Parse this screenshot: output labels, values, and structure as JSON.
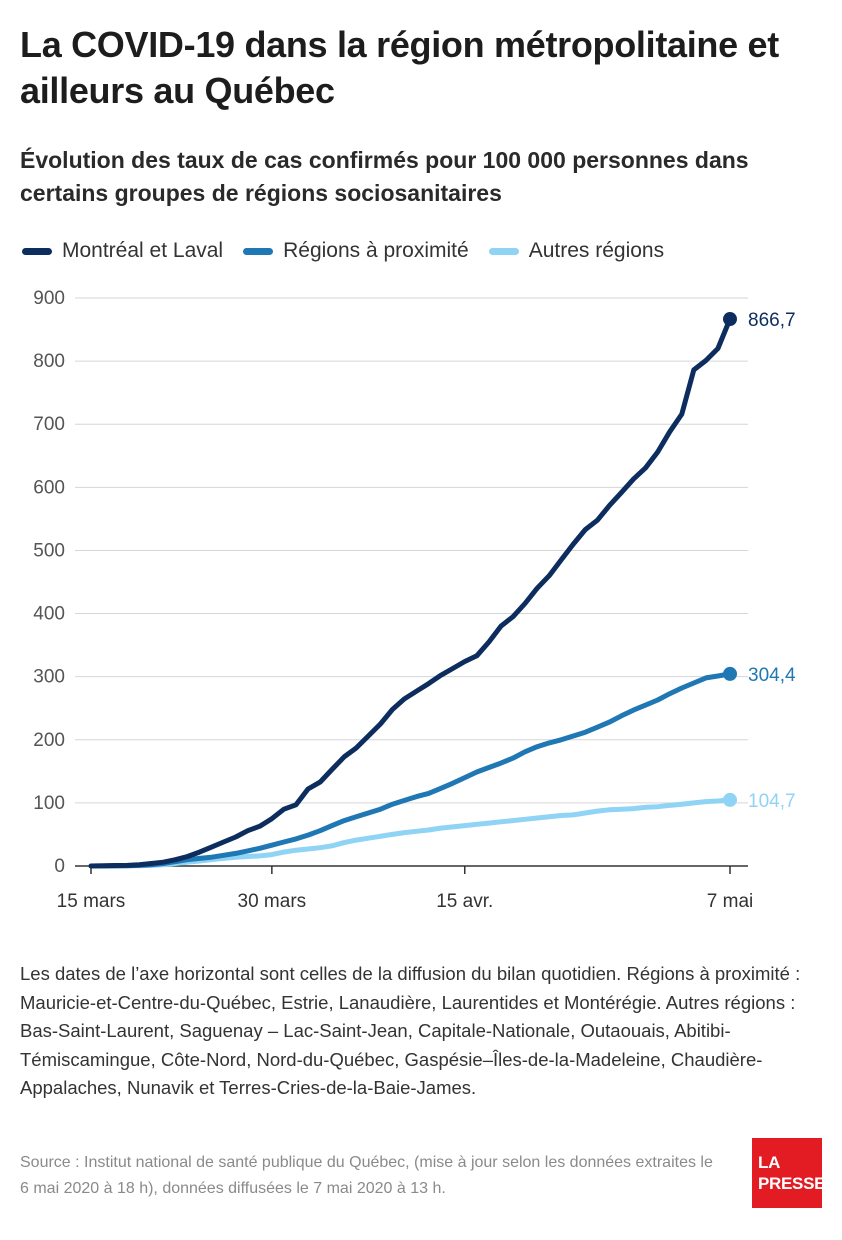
{
  "title": "La COVID-19 dans la région métropolitaine et ailleurs au Québec",
  "subtitle": "Évolution des taux de cas confirmés pour 100 000 personnes dans certains groupes de régions sociosanitaires",
  "notes": "Les dates de l’axe horizontal sont celles de la diffusion du bilan quotidien. Régions à proximité : Mauricie-et-Centre-du-Québec, Estrie, Lanaudière, Laurentides et Montérégie. Autres régions : Bas-Saint-Laurent, Saguenay – Lac-Saint-Jean, Capitale-Nationale, Outaouais, Abitibi-Témiscamingue, Côte-Nord, Nord-du-Québec, Gaspésie–Îles-de-la-Madeleine, Chaudière-Appalaches, Nunavik et Terres-Cries-de-la-Baie-James.",
  "source": "Source : Institut national de santé publique du Québec, (mise à jour selon les données extraites le 6 mai 2020 à 18 h), données diffusées le 7 mai 2020 à 13 h.",
  "logo": {
    "line1": "LA",
    "line2": "PRESSE"
  },
  "chart_data": {
    "type": "line",
    "xlabel": "",
    "ylabel": "",
    "ylim": [
      0,
      900
    ],
    "yticks": [
      0,
      100,
      200,
      300,
      400,
      500,
      600,
      700,
      800,
      900
    ],
    "yticks_labels": [
      "0",
      "100",
      "200",
      "300",
      "400",
      "500",
      "600",
      "700",
      "800",
      "900"
    ],
    "xlim": [
      "2020-03-15",
      "2020-05-07"
    ],
    "xticks": [
      {
        "date": "2020-03-15",
        "label": "15 mars"
      },
      {
        "date": "2020-03-30",
        "label": "30 mars"
      },
      {
        "date": "2020-04-15",
        "label": "15 avr."
      },
      {
        "date": "2020-05-07",
        "label": "7 mai"
      }
    ],
    "grid": true,
    "legend_position": "top-left",
    "x": [
      "2020-03-15",
      "2020-03-16",
      "2020-03-17",
      "2020-03-18",
      "2020-03-19",
      "2020-03-20",
      "2020-03-21",
      "2020-03-22",
      "2020-03-23",
      "2020-03-24",
      "2020-03-25",
      "2020-03-26",
      "2020-03-27",
      "2020-03-28",
      "2020-03-29",
      "2020-03-30",
      "2020-03-31",
      "2020-04-01",
      "2020-04-02",
      "2020-04-03",
      "2020-04-04",
      "2020-04-05",
      "2020-04-06",
      "2020-04-07",
      "2020-04-08",
      "2020-04-09",
      "2020-04-10",
      "2020-04-11",
      "2020-04-12",
      "2020-04-13",
      "2020-04-14",
      "2020-04-15",
      "2020-04-16",
      "2020-04-17",
      "2020-04-18",
      "2020-04-19",
      "2020-04-20",
      "2020-04-21",
      "2020-04-22",
      "2020-04-23",
      "2020-04-24",
      "2020-04-25",
      "2020-04-26",
      "2020-04-27",
      "2020-04-28",
      "2020-04-29",
      "2020-04-30",
      "2020-05-01",
      "2020-05-02",
      "2020-05-03",
      "2020-05-04",
      "2020-05-05",
      "2020-05-06",
      "2020-05-07"
    ],
    "series": [
      {
        "name": "Montréal et Laval",
        "color": "#0c2d5e",
        "end_label": "866,7",
        "values": [
          0,
          0.3,
          0.8,
          1,
          2,
          4,
          6,
          10,
          15,
          22,
          30,
          38,
          46,
          56,
          63,
          75,
          90,
          97,
          122,
          133,
          153,
          173,
          187,
          206,
          225,
          248,
          265,
          277,
          289,
          302,
          313,
          324,
          333,
          355,
          380,
          395,
          416,
          440,
          460,
          485,
          510,
          533,
          548,
          571,
          592,
          613,
          631,
          656,
          688,
          716,
          786,
          801,
          820,
          866.7
        ]
      },
      {
        "name": "Régions à proximité",
        "color": "#1f77b4",
        "end_label": "304,4",
        "values": [
          0,
          0,
          0.2,
          0.5,
          1,
          2,
          4,
          7,
          10,
          12,
          14,
          17,
          20,
          24,
          28,
          33,
          38,
          43,
          49,
          56,
          64,
          72,
          78,
          84,
          90,
          98,
          104,
          110,
          115,
          123,
          131,
          140,
          149,
          156,
          163,
          171,
          181,
          189,
          195,
          200,
          206,
          212,
          220,
          228,
          238,
          247,
          255,
          263,
          273,
          282,
          290,
          298,
          301,
          304.4
        ]
      },
      {
        "name": "Autres régions",
        "color": "#8fd3f5",
        "end_label": "104,7",
        "values": [
          0,
          0,
          0.1,
          0.3,
          0.5,
          1,
          2,
          4,
          6,
          8,
          10,
          12,
          14,
          15,
          16,
          18,
          22,
          25,
          27,
          29,
          32,
          37,
          41,
          44,
          47,
          50,
          53,
          55,
          57,
          60,
          62,
          64,
          66,
          68,
          70,
          72,
          74,
          76,
          78,
          80,
          81,
          84,
          87,
          89,
          90,
          91,
          93,
          94,
          96,
          98,
          100,
          102,
          103,
          104.7
        ]
      }
    ]
  }
}
